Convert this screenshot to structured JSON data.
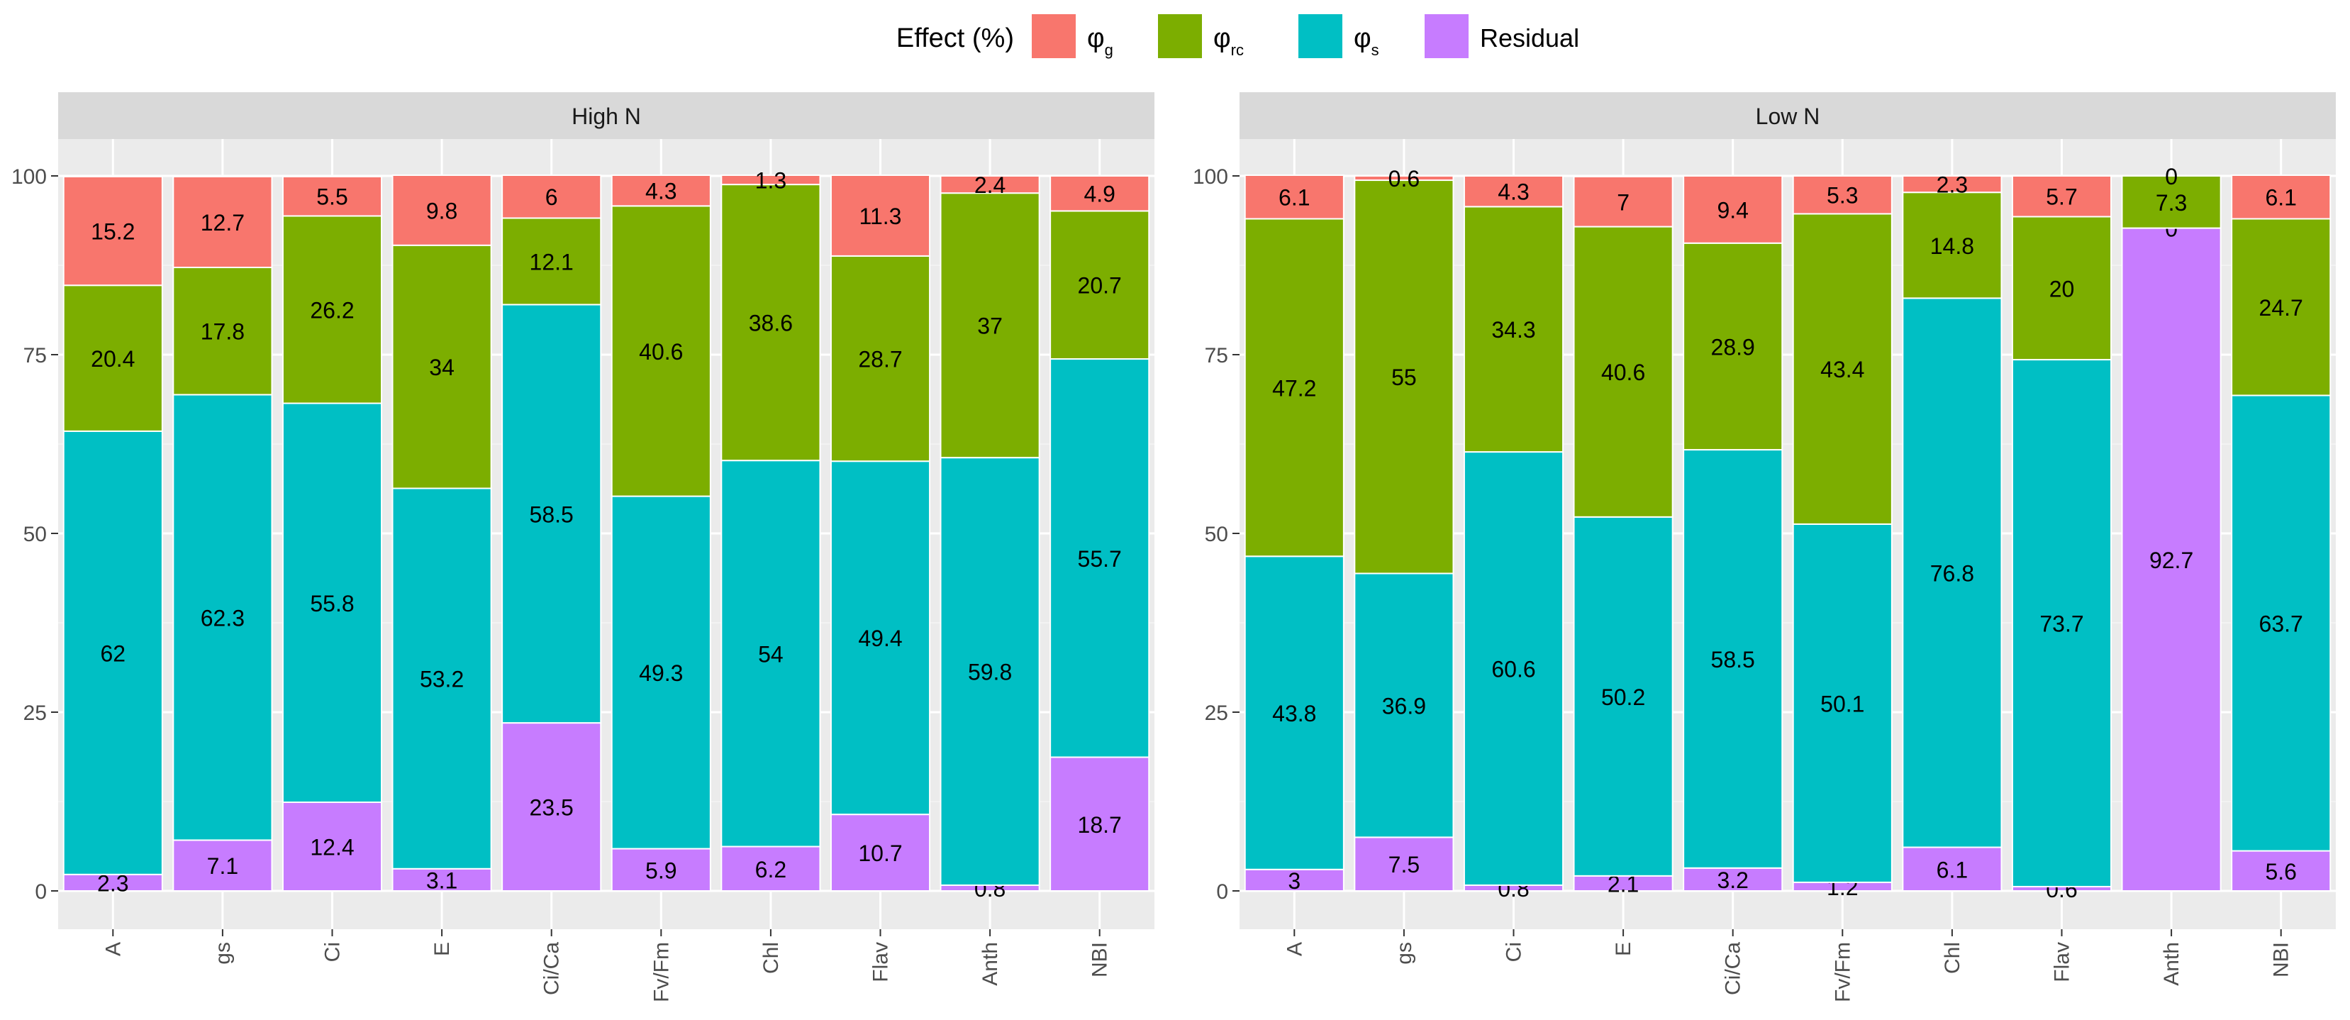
{
  "legend": {
    "title": "Effect (%)",
    "items": [
      {
        "key": "g",
        "symbol": "φ",
        "sub": "g",
        "color": "#F8766D"
      },
      {
        "key": "rc",
        "symbol": "φ",
        "sub": "rc",
        "color": "#7CAE00"
      },
      {
        "key": "s",
        "symbol": "φ",
        "sub": "s",
        "color": "#00BFC4"
      },
      {
        "key": "res",
        "label": "Residual",
        "color": "#C77CFF"
      }
    ]
  },
  "chart_data": [
    {
      "type": "bar",
      "stacked": true,
      "title": "High N",
      "categories": [
        "A",
        "gs",
        "Ci",
        "E",
        "Ci/Ca",
        "Fv/Fm",
        "Chl",
        "Flav",
        "Anth",
        "NBI"
      ],
      "ylim": [
        0,
        100
      ],
      "yticks": [
        0,
        25,
        50,
        75,
        100
      ],
      "series": [
        {
          "name": "Residual",
          "values": [
            2.3,
            7.1,
            12.4,
            3.1,
            23.5,
            5.9,
            6.2,
            10.7,
            0.8,
            18.7
          ]
        },
        {
          "name": "φs",
          "values": [
            62,
            62.3,
            55.8,
            53.2,
            58.5,
            49.3,
            54,
            49.4,
            59.8,
            55.7
          ]
        },
        {
          "name": "φrc",
          "values": [
            20.4,
            17.8,
            26.2,
            34,
            12.1,
            40.6,
            38.6,
            28.7,
            37,
            20.7
          ]
        },
        {
          "name": "φg",
          "values": [
            15.2,
            12.7,
            5.5,
            9.8,
            6,
            4.3,
            1.3,
            11.3,
            2.4,
            4.9
          ]
        }
      ]
    },
    {
      "type": "bar",
      "stacked": true,
      "title": "Low N",
      "categories": [
        "A",
        "gs",
        "Ci",
        "E",
        "Ci/Ca",
        "Fv/Fm",
        "Chl",
        "Flav",
        "Anth",
        "NBI"
      ],
      "ylim": [
        0,
        100
      ],
      "yticks": [
        0,
        25,
        50,
        75,
        100
      ],
      "series": [
        {
          "name": "Residual",
          "values": [
            3,
            7.5,
            0.8,
            2.1,
            3.2,
            1.2,
            6.1,
            0.6,
            92.7,
            5.6
          ]
        },
        {
          "name": "φs",
          "values": [
            43.8,
            36.9,
            60.6,
            50.2,
            58.5,
            50.1,
            76.8,
            73.7,
            0,
            63.7
          ]
        },
        {
          "name": "φrc",
          "values": [
            47.2,
            55,
            34.3,
            40.6,
            28.9,
            43.4,
            14.8,
            20,
            7.3,
            24.7
          ]
        },
        {
          "name": "φg",
          "values": [
            6.1,
            0.6,
            4.3,
            7,
            9.4,
            5.3,
            2.3,
            5.7,
            0,
            6.1
          ]
        }
      ]
    }
  ]
}
